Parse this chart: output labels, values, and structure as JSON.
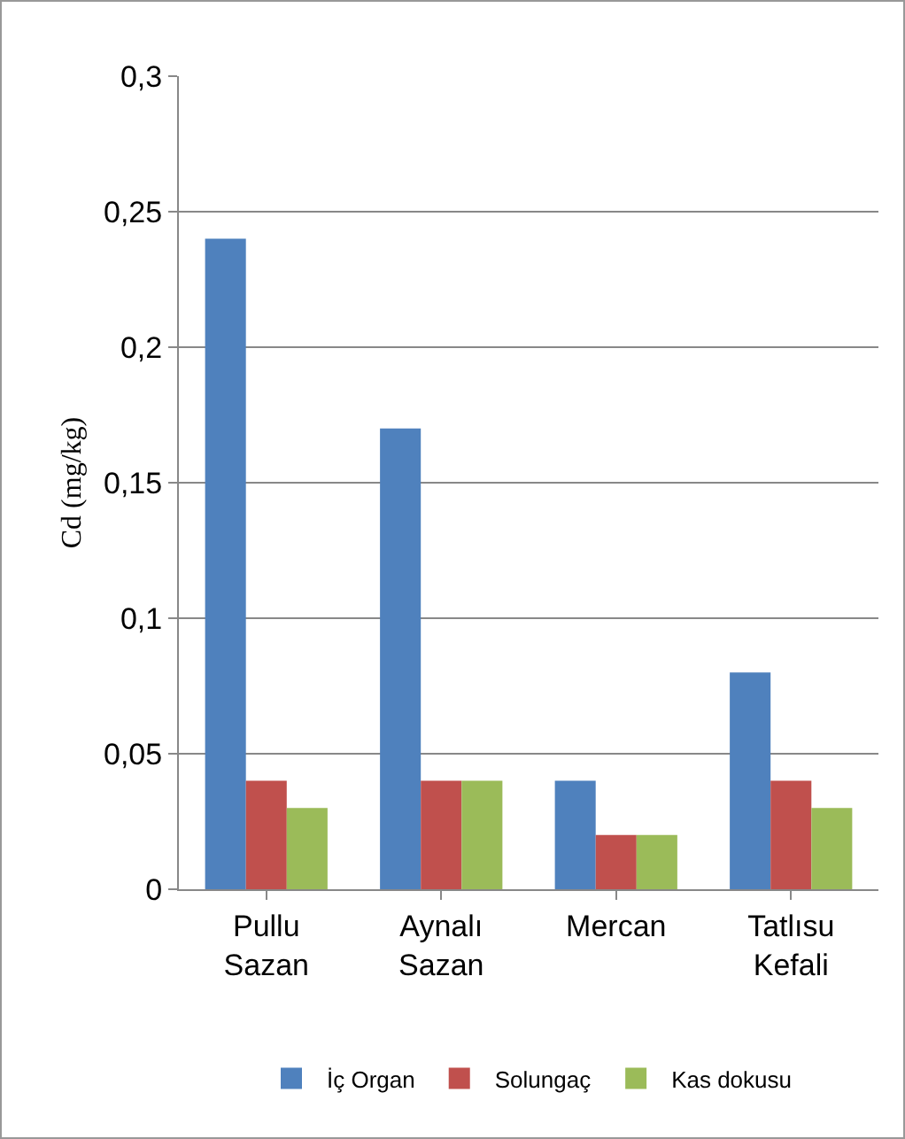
{
  "chart_data": {
    "type": "bar",
    "ylabel": "Cd (mg/kg)",
    "categories": [
      "Pullu Sazan",
      "Aynalı Sazan",
      "Mercan",
      "Tatlısu Kefali"
    ],
    "series": [
      {
        "name": "İç Organ",
        "color": "#4f81bd",
        "values": [
          0.24,
          0.17,
          0.04,
          0.08
        ]
      },
      {
        "name": "Solungaç",
        "color": "#c0504d",
        "values": [
          0.04,
          0.04,
          0.02,
          0.04
        ]
      },
      {
        "name": "Kas dokusu",
        "color": "#9bbb59",
        "values": [
          0.03,
          0.04,
          0.02,
          0.03
        ]
      }
    ],
    "ylim": [
      0,
      0.3
    ],
    "yticks": [
      0,
      {
        "value": 0.05,
        "label": "0,05"
      },
      {
        "value": 0.1,
        "label": "0,1"
      },
      {
        "value": 0.15,
        "label": "0,15"
      },
      {
        "value": 0.2,
        "label": "0,2"
      },
      {
        "value": 0.25,
        "label": "0,25"
      },
      {
        "value": 0.3,
        "label": "0,3"
      }
    ],
    "grid": "y",
    "legend": "bottom"
  }
}
